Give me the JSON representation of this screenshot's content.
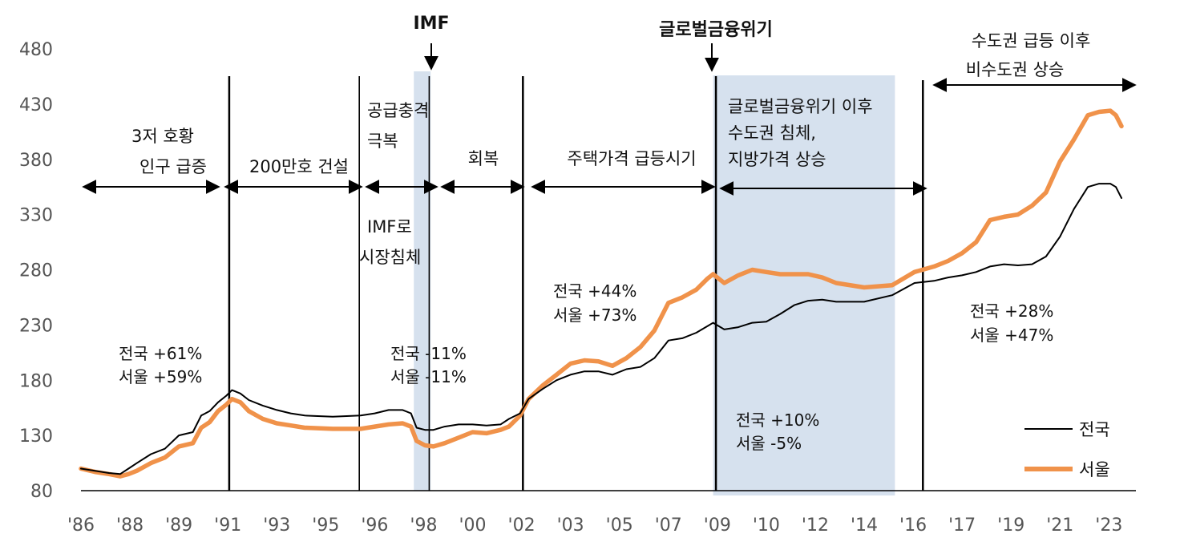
{
  "chart_data": {
    "type": "line",
    "title": "",
    "xlabel": "",
    "ylabel": "",
    "ylim": [
      80,
      480
    ],
    "y_ticks": [
      80,
      130,
      180,
      230,
      280,
      330,
      380,
      430,
      480
    ],
    "x_range": [
      1986.0,
      2023.4
    ],
    "x_ticks": [
      {
        "label": "'86",
        "x": 1986.0
      },
      {
        "label": "'88",
        "x": 1987.75
      },
      {
        "label": "'89",
        "x": 1989.5
      },
      {
        "label": "'91",
        "x": 1991.25
      },
      {
        "label": "'93",
        "x": 1993.0
      },
      {
        "label": "'95",
        "x": 1994.75
      },
      {
        "label": "'96",
        "x": 1996.5
      },
      {
        "label": "'98",
        "x": 1998.25
      },
      {
        "label": "'00",
        "x": 2000.0
      },
      {
        "label": "'02",
        "x": 2001.75
      },
      {
        "label": "'03",
        "x": 2003.5
      },
      {
        "label": "'05",
        "x": 2005.25
      },
      {
        "label": "'07",
        "x": 2007.0
      },
      {
        "label": "'09",
        "x": 2008.75
      },
      {
        "label": "'10",
        "x": 2010.5
      },
      {
        "label": "'12",
        "x": 2012.25
      },
      {
        "label": "'14",
        "x": 2014.0
      },
      {
        "label": "'16",
        "x": 2015.75
      },
      {
        "label": "'17",
        "x": 2017.5
      },
      {
        "label": "'19",
        "x": 2019.25
      },
      {
        "label": "'21",
        "x": 2021.0
      },
      {
        "label": "'23",
        "x": 2022.75
      }
    ],
    "legend_position": "bottom-right",
    "series": [
      {
        "name": "전국",
        "color": "#000000",
        "points": [
          [
            1986.0,
            100
          ],
          [
            1986.5,
            98
          ],
          [
            1987.0,
            96
          ],
          [
            1987.4,
            95
          ],
          [
            1987.7,
            100
          ],
          [
            1988.0,
            105
          ],
          [
            1988.5,
            113
          ],
          [
            1989.0,
            118
          ],
          [
            1989.5,
            130
          ],
          [
            1990.0,
            133
          ],
          [
            1990.3,
            148
          ],
          [
            1990.6,
            152
          ],
          [
            1990.9,
            160
          ],
          [
            1991.2,
            166
          ],
          [
            1991.4,
            171
          ],
          [
            1991.7,
            168
          ],
          [
            1992.0,
            162
          ],
          [
            1992.5,
            157
          ],
          [
            1993.0,
            153
          ],
          [
            1993.5,
            150
          ],
          [
            1994.0,
            148
          ],
          [
            1995.0,
            147
          ],
          [
            1996.0,
            148
          ],
          [
            1996.5,
            150
          ],
          [
            1997.0,
            153
          ],
          [
            1997.5,
            153
          ],
          [
            1997.8,
            150
          ],
          [
            1998.0,
            137
          ],
          [
            1998.3,
            135
          ],
          [
            1998.6,
            135
          ],
          [
            1999.0,
            138
          ],
          [
            1999.5,
            140
          ],
          [
            2000.0,
            140
          ],
          [
            2000.5,
            139
          ],
          [
            2001.0,
            140
          ],
          [
            2001.3,
            145
          ],
          [
            2001.7,
            150
          ],
          [
            2002.0,
            163
          ],
          [
            2002.5,
            172
          ],
          [
            2003.0,
            180
          ],
          [
            2003.5,
            185
          ],
          [
            2004.0,
            188
          ],
          [
            2004.5,
            188
          ],
          [
            2005.0,
            185
          ],
          [
            2005.5,
            190
          ],
          [
            2006.0,
            192
          ],
          [
            2006.5,
            200
          ],
          [
            2007.0,
            216
          ],
          [
            2007.5,
            218
          ],
          [
            2008.0,
            223
          ],
          [
            2008.4,
            229
          ],
          [
            2008.6,
            232
          ],
          [
            2009.0,
            226
          ],
          [
            2009.5,
            228
          ],
          [
            2010.0,
            232
          ],
          [
            2010.5,
            233
          ],
          [
            2011.0,
            240
          ],
          [
            2011.5,
            248
          ],
          [
            2012.0,
            252
          ],
          [
            2012.5,
            253
          ],
          [
            2013.0,
            251
          ],
          [
            2014.0,
            251
          ],
          [
            2015.0,
            257
          ],
          [
            2015.8,
            268
          ],
          [
            2016.5,
            270
          ],
          [
            2017.0,
            273
          ],
          [
            2017.5,
            275
          ],
          [
            2018.0,
            278
          ],
          [
            2018.5,
            283
          ],
          [
            2019.0,
            285
          ],
          [
            2019.5,
            284
          ],
          [
            2020.0,
            285
          ],
          [
            2020.5,
            292
          ],
          [
            2021.0,
            310
          ],
          [
            2021.5,
            335
          ],
          [
            2022.0,
            355
          ],
          [
            2022.4,
            358
          ],
          [
            2022.8,
            358
          ],
          [
            2023.0,
            355
          ],
          [
            2023.2,
            345
          ]
        ]
      },
      {
        "name": "서울",
        "color": "#F0924A",
        "points": [
          [
            1986.0,
            100
          ],
          [
            1986.5,
            97
          ],
          [
            1987.0,
            95
          ],
          [
            1987.4,
            93
          ],
          [
            1987.7,
            95
          ],
          [
            1988.0,
            98
          ],
          [
            1988.5,
            105
          ],
          [
            1989.0,
            110
          ],
          [
            1989.5,
            120
          ],
          [
            1990.0,
            123
          ],
          [
            1990.3,
            137
          ],
          [
            1990.6,
            142
          ],
          [
            1990.9,
            152
          ],
          [
            1991.2,
            158
          ],
          [
            1991.4,
            163
          ],
          [
            1991.7,
            160
          ],
          [
            1992.0,
            152
          ],
          [
            1992.5,
            145
          ],
          [
            1993.0,
            141
          ],
          [
            1993.5,
            139
          ],
          [
            1994.0,
            137
          ],
          [
            1995.0,
            136
          ],
          [
            1996.0,
            136
          ],
          [
            1996.5,
            138
          ],
          [
            1997.0,
            140
          ],
          [
            1997.5,
            141
          ],
          [
            1997.8,
            138
          ],
          [
            1998.0,
            125
          ],
          [
            1998.3,
            121
          ],
          [
            1998.6,
            120
          ],
          [
            1999.0,
            123
          ],
          [
            1999.5,
            128
          ],
          [
            2000.0,
            133
          ],
          [
            2000.5,
            132
          ],
          [
            2001.0,
            135
          ],
          [
            2001.3,
            138
          ],
          [
            2001.7,
            148
          ],
          [
            2002.0,
            163
          ],
          [
            2002.5,
            175
          ],
          [
            2003.0,
            185
          ],
          [
            2003.5,
            195
          ],
          [
            2004.0,
            198
          ],
          [
            2004.5,
            197
          ],
          [
            2005.0,
            193
          ],
          [
            2005.5,
            200
          ],
          [
            2006.0,
            210
          ],
          [
            2006.5,
            225
          ],
          [
            2007.0,
            250
          ],
          [
            2007.5,
            255
          ],
          [
            2008.0,
            262
          ],
          [
            2008.4,
            272
          ],
          [
            2008.6,
            276
          ],
          [
            2009.0,
            268
          ],
          [
            2009.5,
            275
          ],
          [
            2010.0,
            280
          ],
          [
            2010.5,
            278
          ],
          [
            2011.0,
            276
          ],
          [
            2011.5,
            276
          ],
          [
            2012.0,
            276
          ],
          [
            2012.5,
            273
          ],
          [
            2013.0,
            268
          ],
          [
            2014.0,
            264
          ],
          [
            2015.0,
            266
          ],
          [
            2015.8,
            278
          ],
          [
            2016.5,
            283
          ],
          [
            2017.0,
            288
          ],
          [
            2017.5,
            295
          ],
          [
            2018.0,
            305
          ],
          [
            2018.5,
            325
          ],
          [
            2019.0,
            328
          ],
          [
            2019.5,
            330
          ],
          [
            2020.0,
            338
          ],
          [
            2020.5,
            350
          ],
          [
            2021.0,
            378
          ],
          [
            2021.5,
            398
          ],
          [
            2022.0,
            420
          ],
          [
            2022.4,
            423
          ],
          [
            2022.8,
            424
          ],
          [
            2023.0,
            420
          ],
          [
            2023.2,
            410
          ]
        ]
      }
    ],
    "shaded_periods": [
      {
        "from": 1997.9,
        "to": 1998.5
      },
      {
        "from": 2008.6,
        "to": 2015.1
      }
    ],
    "period_dividers": [
      1991.3,
      2001.8,
      2008.7,
      2016.1
    ],
    "thin_dividers": [
      1995.95,
      1998.45
    ],
    "annotations": {
      "imf": "IMF",
      "gfc": "글로벌금융위기",
      "p1_line1": "3저 호황",
      "p1_line2": "인구 급증",
      "p2": "200만호 건설",
      "p3_line1": "공급충격",
      "p3_line2": "극복",
      "p4": "회복",
      "p5": "주택가격 급등시기",
      "p6_line1": "글로벌금융위기 이후",
      "p6_line2": "수도권 침체,",
      "p6_line3": "지방가격 상승",
      "p7_line1": "수도권 급등 이후",
      "p7_line2": "비수도권 상승",
      "imf_stag_line1": "IMF로",
      "imf_stag_line2": "시장침체",
      "s1_line1": "전국 +61%",
      "s1_line2": "서울 +59%",
      "s2_line1": "전국 -11%",
      "s2_line2": "서울 -11%",
      "s3_line1": "전국 +44%",
      "s3_line2": "서울 +73%",
      "s4_line1": "전국 +10%",
      "s4_line2": "서울 -5%",
      "s5_line1": "전국 +28%",
      "s5_line2": "서울 +47%"
    }
  }
}
